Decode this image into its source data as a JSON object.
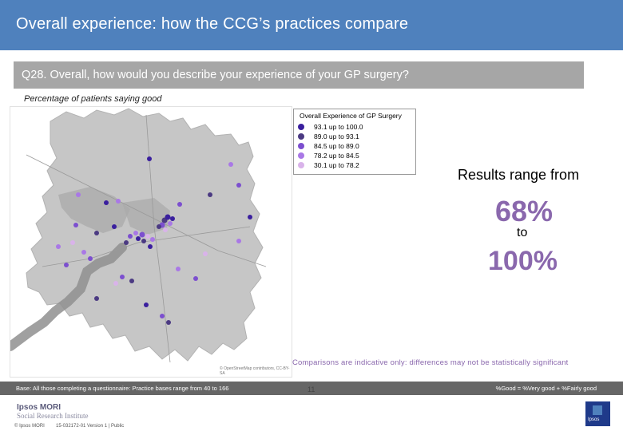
{
  "header": {
    "title": "Overall experience: how the CCG’s practices compare"
  },
  "question": {
    "text": "Q28. Overall, how would you describe your experience of your GP surgery?"
  },
  "subtitle": "Percentage of patients saying good",
  "map": {
    "credit": "© OpenStreetMap contributors, CC-BY-SA"
  },
  "legend": {
    "title": "Overall Experience of GP Surgery",
    "items": [
      {
        "label": "93.1 up to 100.0",
        "color": "#3a1f9e"
      },
      {
        "label": "89.0 up to 93.1",
        "color": "#4b3a82"
      },
      {
        "label": "84.5 up to 89.0",
        "color": "#7c4fcf"
      },
      {
        "label": "78.2 up to 84.5",
        "color": "#a978e6"
      },
      {
        "label": "30.1 up to 78.2",
        "color": "#d9b3ea"
      }
    ]
  },
  "results": {
    "label": "Results range from",
    "low": "68%",
    "to": "to",
    "high": "100%"
  },
  "caveat": "Comparisons are indicative only: differences may not be statistically significant",
  "footer": {
    "base": "Base: All those completing a questionnaire: Practice bases range from 40 to 166",
    "good_definition": "%Good = %Very good + %Fairly good",
    "page": "11",
    "brand": "Ipsos MORI",
    "brand_sub": "Social Research Institute",
    "copyright": "© Ipsos MORI",
    "job": "15-032172-01 Version 1 | Public",
    "corner_label": "Ipsos"
  },
  "colors": {
    "header": "#4f81bd",
    "accent": "#8a68ad",
    "question_bar": "#a6a6a6",
    "footer": "#666666"
  }
}
